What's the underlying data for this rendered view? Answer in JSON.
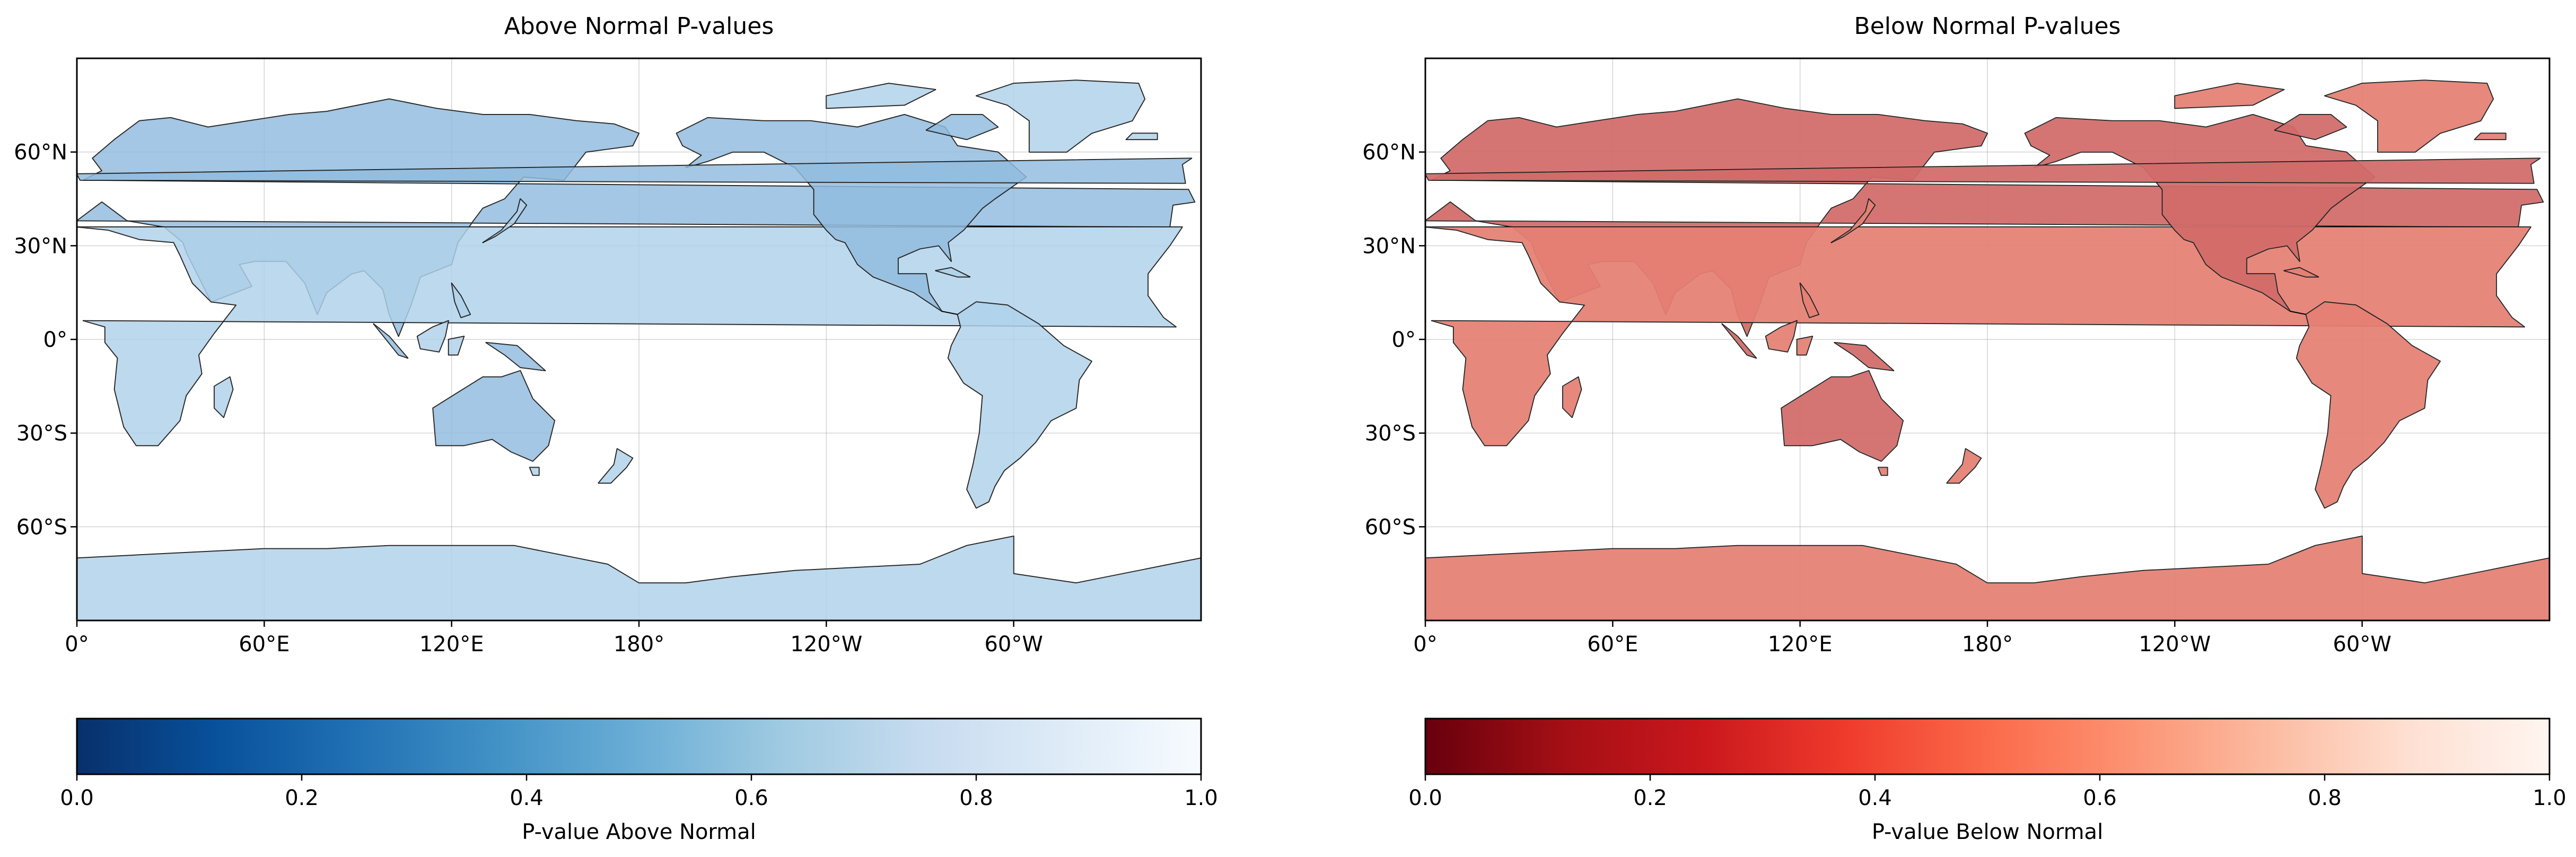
{
  "panels": [
    {
      "id": "above",
      "title": "Above Normal P-values",
      "colorbar": {
        "label": "P-value Above Normal",
        "ticks": [
          "0.0",
          "0.2",
          "0.4",
          "0.6",
          "0.8",
          "1.0"
        ],
        "colors": [
          "#08306b",
          "#08519c",
          "#2171b5",
          "#4292c6",
          "#6baed6",
          "#9ecae1",
          "#c6dbef",
          "#deebf7",
          "#f7fbff"
        ],
        "range": [
          0.0,
          1.0
        ]
      }
    },
    {
      "id": "below",
      "title": "Below Normal P-values",
      "colorbar": {
        "label": "P-value Below Normal",
        "ticks": [
          "0.0",
          "0.2",
          "0.4",
          "0.6",
          "0.8",
          "1.0"
        ],
        "colors": [
          "#67000d",
          "#a50f15",
          "#cb181d",
          "#ef3b2c",
          "#fb6a4a",
          "#fc9272",
          "#fcbba1",
          "#fee0d2",
          "#fff5f0"
        ],
        "range": [
          0.0,
          1.0
        ]
      }
    }
  ],
  "map": {
    "projection": "PlateCarree (central longitude 180°E)",
    "xticks": [
      "0°",
      "60°E",
      "120°E",
      "180°",
      "120°W",
      "60°W"
    ],
    "yticks": [
      "60°N",
      "30°N",
      "0°",
      "30°S",
      "60°S"
    ],
    "extent": {
      "lon": [
        0,
        360
      ],
      "lat": [
        -90,
        90
      ]
    },
    "gridlines": true,
    "land_color_above": "#2f77b8",
    "land_color_below": "#c51b1b",
    "coastline_color": "#000000"
  }
}
